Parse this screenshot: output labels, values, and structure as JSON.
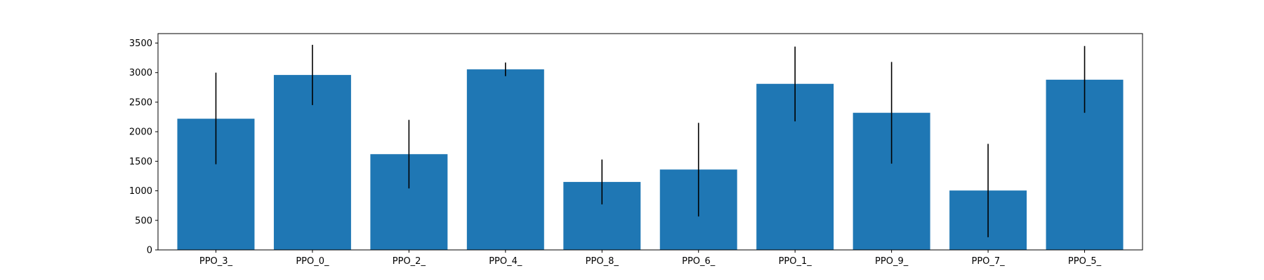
{
  "chart_data": {
    "type": "bar",
    "title": "",
    "xlabel": "",
    "ylabel": "",
    "categories": [
      "PPO_3_",
      "PPO_0_",
      "PPO_2_",
      "PPO_4_",
      "PPO_8_",
      "PPO_6_",
      "PPO_1_",
      "PPO_9_",
      "PPO_7_",
      "PPO_5_"
    ],
    "values": [
      2220,
      2960,
      1620,
      3055,
      1150,
      1360,
      2810,
      2320,
      1005,
      2880
    ],
    "error_low": [
      1450,
      2450,
      1040,
      2940,
      770,
      565,
      2175,
      1460,
      215,
      2320
    ],
    "error_high": [
      3000,
      3470,
      2200,
      3170,
      1530,
      2150,
      3440,
      3180,
      1795,
      3450
    ],
    "ylim": [
      0,
      3660
    ],
    "yticks": [
      0,
      500,
      1000,
      1500,
      2000,
      2500,
      3000,
      3500
    ],
    "grid": false,
    "bar_color": "#1f77b4",
    "error_color": "#000000"
  }
}
